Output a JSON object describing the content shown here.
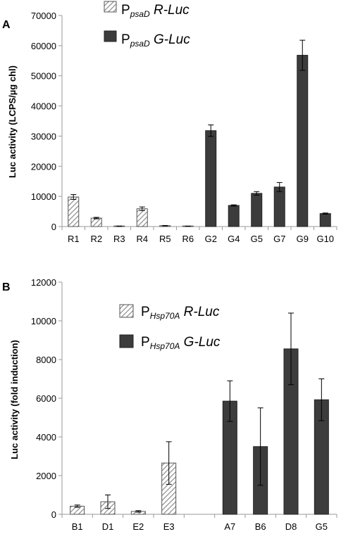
{
  "colors": {
    "rluc_hatch": "#8c8c8c",
    "gluc_fill": "#3c3c3c",
    "axis": "#9a9a9a"
  },
  "chart_data": [
    {
      "panel_label": "A",
      "type": "bar",
      "ylabel": "Luc activity (LCPS/µg chl)",
      "xlabel": "",
      "ylim": [
        0,
        70000
      ],
      "yticks": [
        0,
        10000,
        20000,
        30000,
        40000,
        50000,
        60000,
        70000
      ],
      "grid": false,
      "legend_position": "top",
      "legend": [
        {
          "prefix": "P",
          "sub": "psaD",
          "name": " R-Luc",
          "style": "hatched"
        },
        {
          "prefix": "P",
          "sub": "psaD",
          "name": " G-Luc",
          "style": "solid"
        }
      ],
      "categories": [
        "R1",
        "R2",
        "R3",
        "R4",
        "R5",
        "R6",
        "G2",
        "G4",
        "G5",
        "G7",
        "G9",
        "G10"
      ],
      "values": [
        9800,
        2800,
        100,
        5900,
        300,
        100,
        31800,
        7000,
        11000,
        13100,
        56800,
        4300
      ],
      "errors": [
        800,
        250,
        50,
        600,
        60,
        40,
        1900,
        200,
        600,
        1500,
        5000,
        200
      ],
      "styles": [
        "hatched",
        "hatched",
        "hatched",
        "hatched",
        "hatched",
        "hatched",
        "solid",
        "solid",
        "solid",
        "solid",
        "solid",
        "solid"
      ]
    },
    {
      "panel_label": "B",
      "type": "bar",
      "ylabel": "Luc activity (fold induction)",
      "xlabel": "",
      "ylim": [
        0,
        12000
      ],
      "yticks": [
        0,
        2000,
        4000,
        6000,
        8000,
        10000,
        12000
      ],
      "grid": false,
      "legend_position": "top-left",
      "legend": [
        {
          "prefix": "P",
          "sub": "Hsp70A",
          "name": " R-Luc",
          "style": "hatched"
        },
        {
          "prefix": "P",
          "sub": "Hsp70A",
          "name": " G-Luc",
          "style": "solid"
        }
      ],
      "categories": [
        "B1",
        "D1",
        "E2",
        "E3",
        "",
        "A7",
        "B6",
        "D8",
        "G5"
      ],
      "values": [
        420,
        650,
        150,
        2650,
        null,
        5850,
        3500,
        8550,
        5920
      ],
      "errors": [
        60,
        350,
        40,
        1100,
        null,
        1050,
        2000,
        1850,
        1080
      ],
      "styles": [
        "hatched",
        "hatched",
        "hatched",
        "hatched",
        "none",
        "solid",
        "solid",
        "solid",
        "solid"
      ]
    }
  ]
}
